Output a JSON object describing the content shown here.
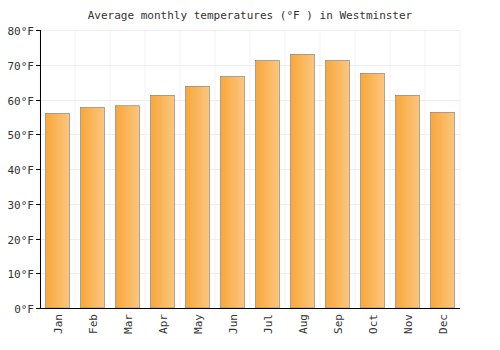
{
  "chart_data": {
    "type": "bar",
    "title": "Average monthly temperatures (°F ) in Westminster",
    "categories": [
      "Jan",
      "Feb",
      "Mar",
      "Apr",
      "May",
      "Jun",
      "Jul",
      "Aug",
      "Sep",
      "Oct",
      "Nov",
      "Dec"
    ],
    "values": [
      56,
      57.7,
      58.2,
      61.2,
      63.8,
      66.6,
      71.2,
      73,
      71.2,
      67.5,
      61.2,
      56.3
    ],
    "color": "#f9a73a",
    "ylim": [
      0,
      80
    ],
    "yticks": [
      {
        "value": 0,
        "label": "0°F"
      },
      {
        "value": 10,
        "label": "10°F"
      },
      {
        "value": 20,
        "label": "20°F"
      },
      {
        "value": 30,
        "label": "30°F"
      },
      {
        "value": 40,
        "label": "40°F"
      },
      {
        "value": 50,
        "label": "50°F"
      },
      {
        "value": 60,
        "label": "60°F"
      },
      {
        "value": 70,
        "label": "70°F"
      },
      {
        "value": 80,
        "label": "80°F"
      }
    ],
    "grid": true
  }
}
